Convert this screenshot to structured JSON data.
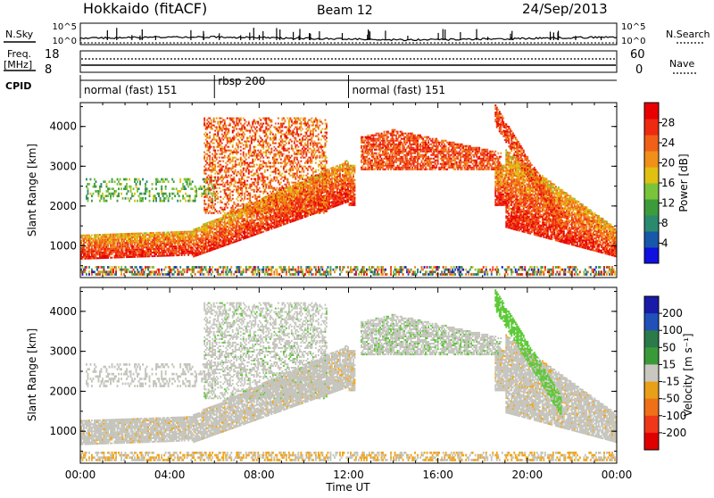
{
  "header": {
    "station": "Hokkaido (fitACF)",
    "beam": "Beam 12",
    "date": "24/Sep/2013"
  },
  "noise_panel": {
    "left_label": "N.Sky",
    "right_label": "N.Search",
    "y_ticks": [
      "10^5",
      "10^0"
    ]
  },
  "freq_panel": {
    "left_label_line1": "Freq.",
    "left_label_line2": "[MHz]",
    "left_ticks": [
      "18",
      "8"
    ],
    "right_label": "Nave",
    "right_ticks": [
      "60",
      "0"
    ]
  },
  "cpid": {
    "label": "CPID",
    "segments": [
      {
        "name": "normal (fast) 151",
        "start_hour": 0,
        "end_hour": 6
      },
      {
        "name": "rbsp 200",
        "start_hour": 6,
        "end_hour": 12
      },
      {
        "name": "normal (fast) 151",
        "start_hour": 12,
        "end_hour": 24
      }
    ]
  },
  "chart_data": [
    {
      "type": "heatmap",
      "name": "power",
      "xlabel": "",
      "ylabel": "Slant Range [km]",
      "xlim": [
        0,
        24
      ],
      "ylim": [
        200,
        4600
      ],
      "y_ticks": [
        "1000",
        "2000",
        "3000",
        "4000"
      ],
      "colorbar": {
        "label": "Power [dB]",
        "ticks": [
          "4",
          "8",
          "12",
          "16",
          "20",
          "24",
          "28"
        ],
        "colors": [
          "#1010e0",
          "#1858a8",
          "#2a8a6e",
          "#3c9c3c",
          "#7ac43a",
          "#e0c010",
          "#f09018",
          "#f06018",
          "#ee2a10",
          "#e80000"
        ]
      }
    },
    {
      "type": "heatmap",
      "name": "velocity",
      "xlabel": "Time UT",
      "ylabel": "Slant Range [km]",
      "xlim": [
        0,
        24
      ],
      "ylim": [
        200,
        4600
      ],
      "y_ticks": [
        "1000",
        "2000",
        "3000",
        "4000"
      ],
      "x_ticks": [
        "00:00",
        "04:00",
        "08:00",
        "12:00",
        "16:00",
        "20:00",
        "00:00"
      ],
      "colorbar": {
        "label": "Velocity [m s⁻¹]",
        "ticks": [
          "200",
          "100",
          "50",
          "15",
          "-15",
          "-50",
          "-100",
          "-200"
        ],
        "colors": [
          "#1a1aa8",
          "#2050b8",
          "#2a7a4a",
          "#3a9a3a",
          "#c8c8c0",
          "#e8a018",
          "#f07018",
          "#f03818",
          "#e00000"
        ]
      }
    }
  ],
  "colors": {
    "gray": "#c4c4bc",
    "green": "#5ac835",
    "orange": "#f2a51a",
    "blue": "#1c3ab0"
  }
}
